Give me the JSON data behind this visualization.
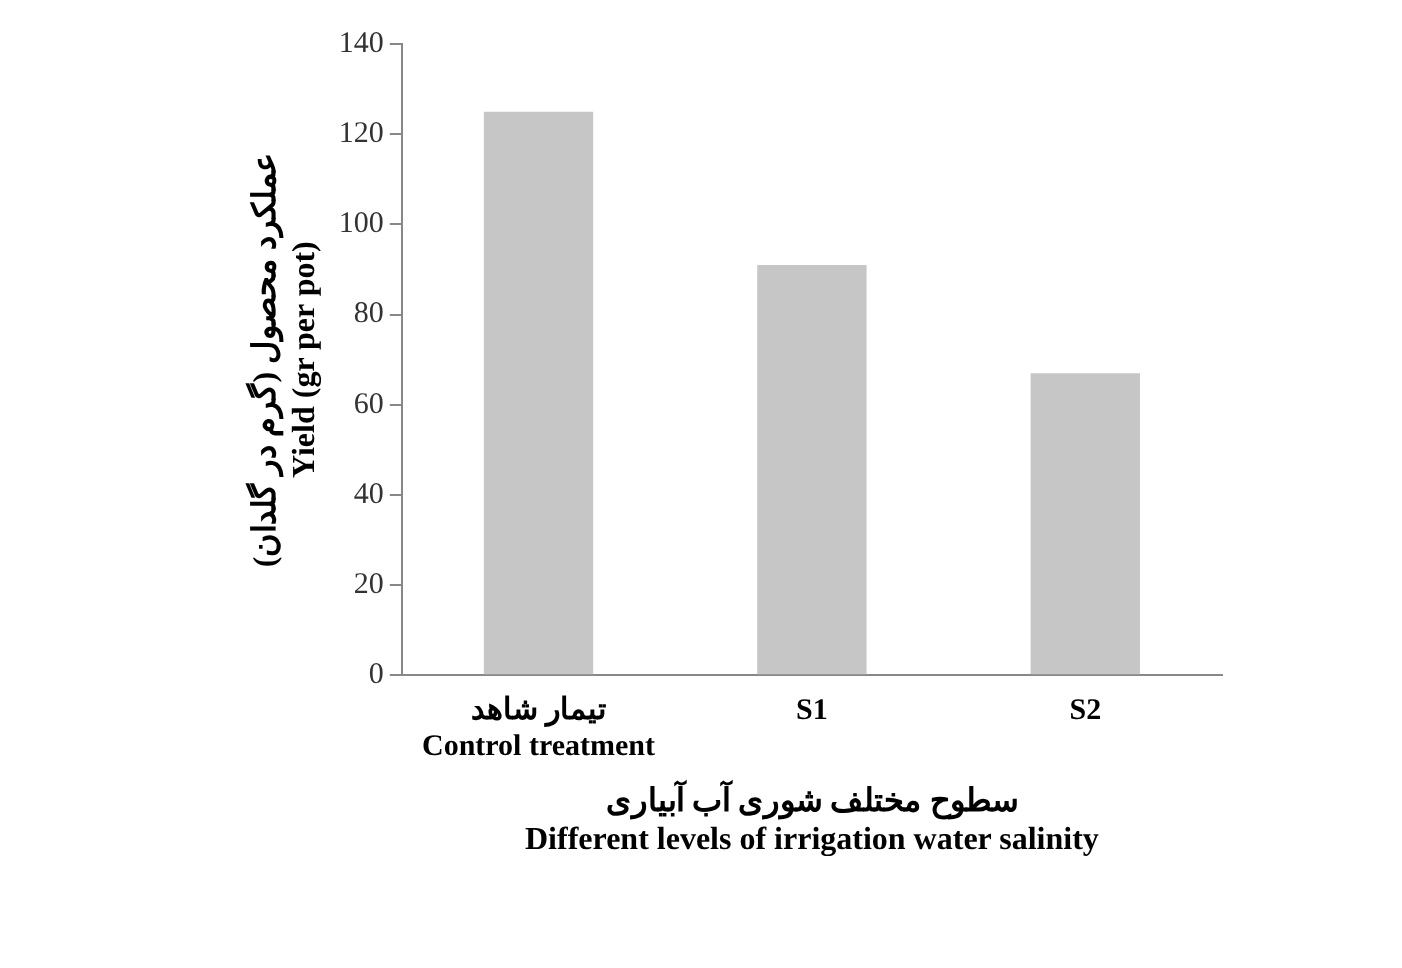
{
  "chart_data": {
    "type": "bar",
    "categories": [
      "تیمار شاهد\nControl treatment",
      "S1",
      "S2"
    ],
    "values": [
      125,
      91,
      67
    ],
    "color": "#c6c6c6",
    "xlabel": "سطوح مختلف شوری آب آبیاری\nDifferent levels of irrigation water salinity",
    "ylabel": "عملکرد محصول (گرم در گلدان)\nYield (gr per pot)",
    "ylim": [
      0,
      140
    ],
    "yticks": [
      0,
      20,
      40,
      60,
      80,
      100,
      120,
      140
    ],
    "grid": false,
    "legend": false
  }
}
